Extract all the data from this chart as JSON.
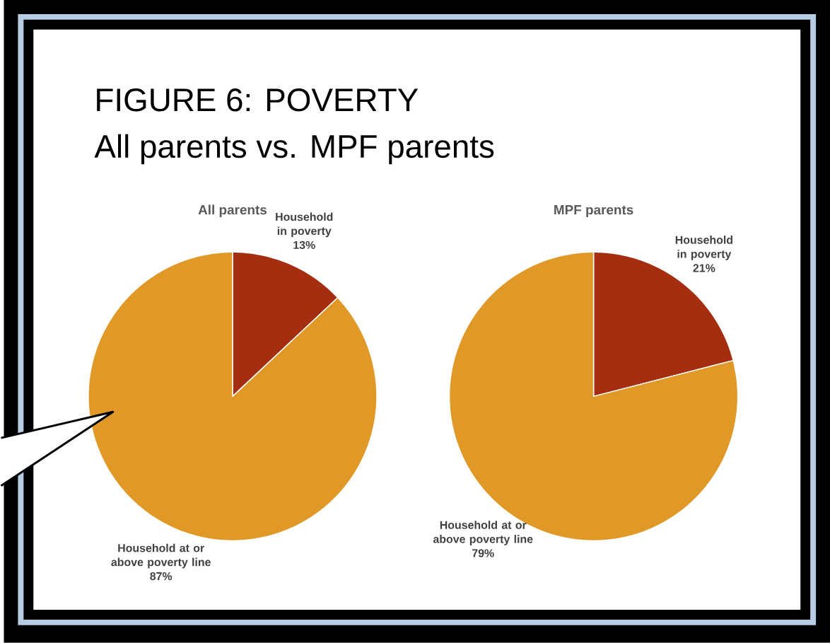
{
  "chart_data": [
    {
      "type": "other",
      "title": "FIGURE 6: POVERTY",
      "subtitle": "All parents vs. MPF parents"
    },
    {
      "type": "pie",
      "title": "All parents",
      "categories": [
        "Household in poverty",
        "Household at or above poverty line"
      ],
      "values": [
        13,
        87
      ],
      "colors": [
        "#a52d10",
        "#e09826"
      ],
      "value_labels": [
        "13%",
        "87%"
      ]
    },
    {
      "type": "pie",
      "title": "MPF parents",
      "categories": [
        "Household in poverty",
        "Household at or above poverty line"
      ],
      "values": [
        21,
        79
      ],
      "colors": [
        "#a52d10",
        "#e09826"
      ],
      "value_labels": [
        "21%",
        "79%"
      ]
    }
  ]
}
